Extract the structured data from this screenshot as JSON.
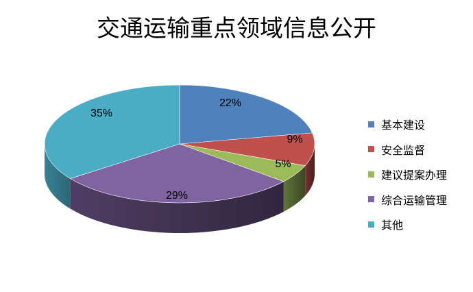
{
  "chart_data": {
    "type": "pie",
    "title": "交通运输重点领域信息公开",
    "style": "3d",
    "categories": [
      "基本建设",
      "安全监督",
      "建议提案办理",
      "综合运输管理",
      "其他"
    ],
    "values": [
      22,
      9,
      5,
      29,
      35
    ],
    "data_labels": [
      "22%",
      "9%",
      "5%",
      "29%",
      "35%"
    ],
    "colors": [
      "#4F81BD",
      "#C0504D",
      "#9BBB59",
      "#8064A2",
      "#4BACC6"
    ],
    "legend_position": "right"
  }
}
